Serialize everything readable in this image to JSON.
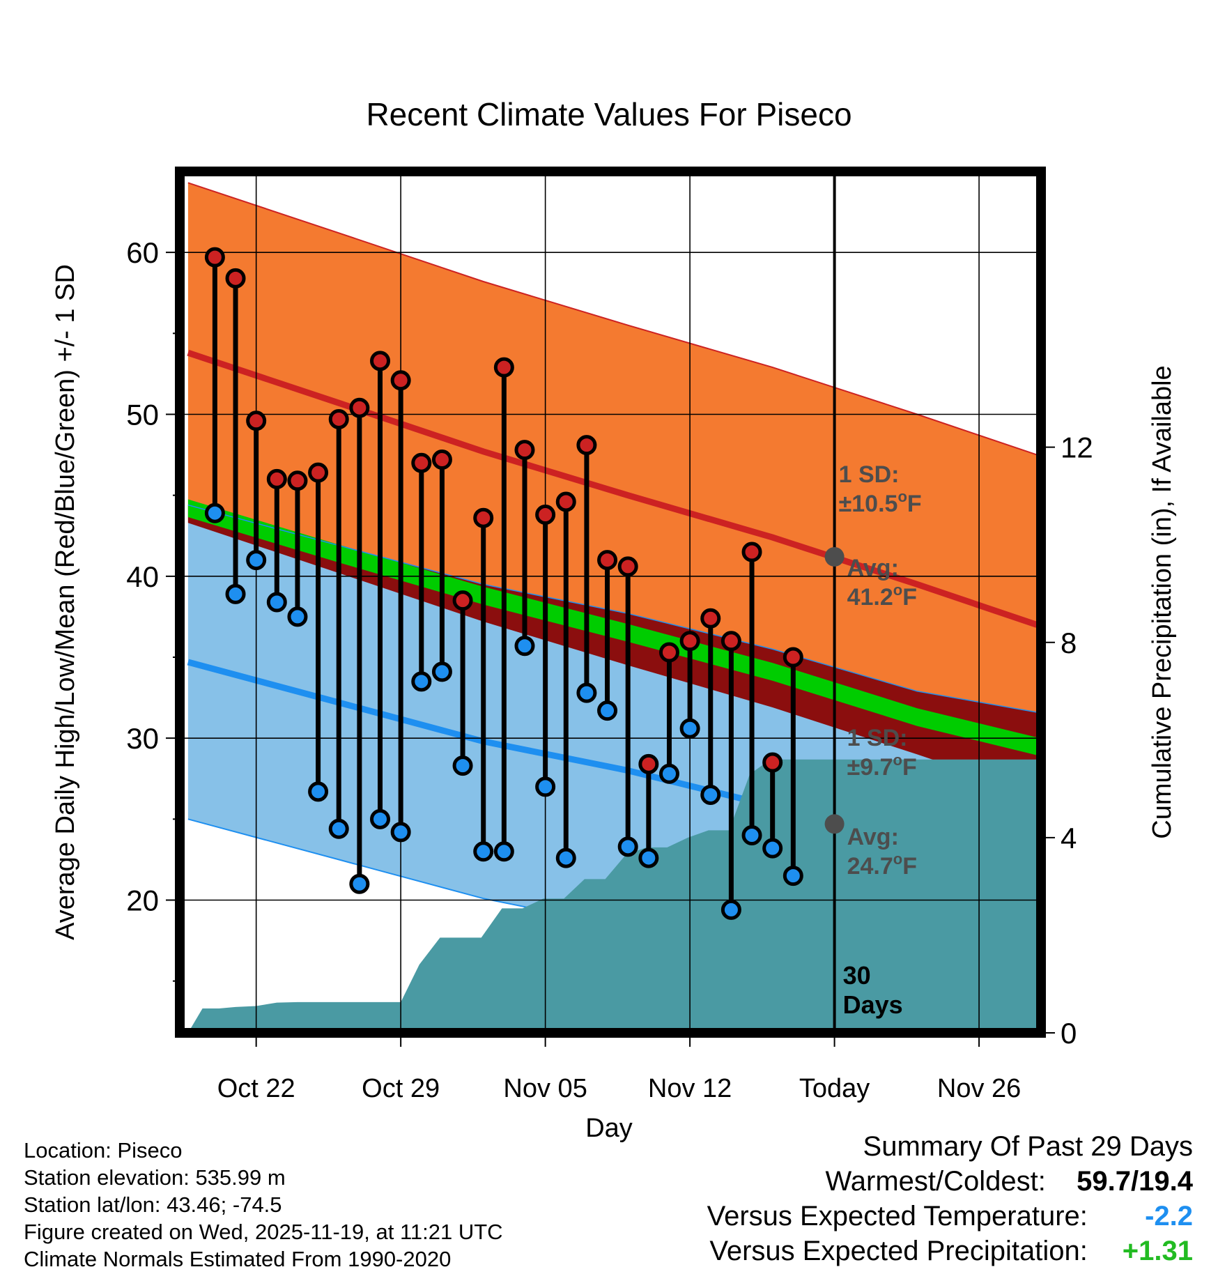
{
  "chart_data": {
    "type": "line",
    "title": "Recent Climate Values For Piseco",
    "xlabel": "Day",
    "ylabel_left": "Average Daily High/Low/Mean (Red/Blue/Green) +/- 1 SD",
    "ylabel_right": "Cumulative Precipitation (in), If Available",
    "ylim_left": [
      11.8,
      65
    ],
    "ylim_right": [
      0,
      17.65
    ],
    "xlim_days": [
      -0.7,
      41.0
    ],
    "x_ticks": [
      {
        "day": 3,
        "label": "Oct 22"
      },
      {
        "day": 10,
        "label": "Oct 29"
      },
      {
        "day": 17,
        "label": "Nov 05"
      },
      {
        "day": 24,
        "label": "Nov 12"
      },
      {
        "day": 31,
        "label": "Today"
      },
      {
        "day": 38,
        "label": "Nov 26"
      }
    ],
    "y_ticks_left": [
      20,
      30,
      40,
      50,
      60
    ],
    "y_minor_left": [
      15,
      25,
      35,
      45,
      55
    ],
    "y_ticks_right": [
      0,
      4,
      8,
      12
    ],
    "today_day": 31,
    "today_label": "30\nDays",
    "normals": {
      "days": [
        -0.3,
        7,
        14,
        21,
        28,
        35,
        40.8
      ],
      "high_avg": [
        53.8,
        50.7,
        47.7,
        45.0,
        42.4,
        39.5,
        37.0
      ],
      "high_sd": 10.5,
      "low_avg": [
        34.7,
        32.2,
        29.8,
        28.0,
        25.8,
        23.2,
        21.9
      ],
      "low_sd": 9.7,
      "mean_avg": [
        44.2,
        41.4,
        38.8,
        36.5,
        34.1,
        31.3,
        29.5
      ],
      "mean_halfwidth": 0.55
    },
    "observations": {
      "days": [
        1,
        2,
        3,
        4,
        5,
        6,
        7,
        8,
        9,
        10,
        11,
        12,
        13,
        14,
        15,
        16,
        17,
        18,
        19,
        20,
        21,
        22,
        23,
        24,
        25,
        26,
        27,
        28,
        29
      ],
      "highs": [
        59.7,
        58.4,
        49.6,
        46.0,
        45.9,
        46.4,
        49.7,
        50.4,
        53.3,
        52.1,
        47.0,
        47.2,
        38.5,
        43.6,
        52.9,
        47.8,
        43.8,
        44.6,
        48.1,
        41.0,
        40.6,
        28.4,
        35.3,
        36.0,
        37.4,
        36.0,
        41.5,
        28.5,
        35.0
      ],
      "lows": [
        43.9,
        38.9,
        41.0,
        38.4,
        37.5,
        26.7,
        24.4,
        21.0,
        25.0,
        24.2,
        33.5,
        34.1,
        28.3,
        23.0,
        23.0,
        35.7,
        27.0,
        22.6,
        32.8,
        31.7,
        23.3,
        22.6,
        27.8,
        30.6,
        26.5,
        19.4,
        24.0,
        23.2,
        21.5
      ]
    },
    "precip_cumulative": {
      "days": [
        -0.3,
        0.4,
        1.2,
        2.0,
        3.0,
        4.0,
        5.0,
        6.0,
        7.0,
        8.0,
        9.0,
        10.0,
        10.9,
        11.9,
        12.9,
        13.9,
        14.9,
        15.9,
        16.9,
        17.9,
        18.9,
        19.9,
        20.9,
        21.9,
        22.9,
        23.9,
        24.9,
        25.9,
        26.9,
        27.9,
        28.9,
        29.9,
        30.9,
        31.9,
        32.9,
        33.9,
        34.9,
        35.9,
        36.9,
        37.9,
        38.9,
        39.9,
        40.8
      ],
      "values": [
        0.0,
        0.5,
        0.5,
        0.53,
        0.55,
        0.62,
        0.63,
        0.63,
        0.63,
        0.63,
        0.63,
        0.63,
        1.4,
        1.95,
        1.95,
        1.95,
        2.55,
        2.55,
        2.75,
        2.75,
        3.15,
        3.15,
        3.65,
        3.8,
        3.8,
        4.0,
        4.15,
        4.15,
        5.3,
        5.6,
        5.6,
        5.6,
        5.6,
        5.6,
        5.6,
        5.6,
        5.6,
        5.6,
        5.6,
        5.6,
        5.6,
        5.6,
        5.6
      ]
    },
    "annotations": {
      "high_sd_label": "1 SD:",
      "high_sd_value": "±10.5",
      "high_avg_label": "Avg:",
      "high_avg_value": "41.2",
      "low_sd_label": "1 SD:",
      "low_sd_value": "±9.7",
      "low_avg_label": "Avg:",
      "low_avg_value": "24.7",
      "degree_symbol": "o",
      "unit": "F",
      "today_high_avg": 41.2,
      "today_low_avg": 24.7
    }
  },
  "colors": {
    "high_band": "#f47a30",
    "high_line": "#cc2222",
    "low_band": "#87c1e8",
    "low_line": "#1e8ff0",
    "mean_band": "#00cc00",
    "overlap_dark": "#8b0e0e",
    "precip": "#4a9aa3",
    "high_marker": "#cc2222",
    "low_marker": "#1e8ff0",
    "avg_marker": "#4d4d4d",
    "annotation_text": "#4d4d4d",
    "cold_value": "#1e8ff0",
    "wet_value": "#22bb22"
  },
  "metadata": {
    "location": "Location: Piseco",
    "elevation": "Station elevation: 535.99 m",
    "latlon": "Station lat/lon: 43.46; -74.5",
    "created": "Figure created on Wed, 2025-11-19, at 11:21 UTC",
    "normals": "Climate Normals Estimated From 1990-2020"
  },
  "summary": {
    "title": "Summary Of Past 29 Days",
    "warm_cold_label": "Warmest/Coldest:",
    "warm_cold_value": "59.7/19.4",
    "temp_label": "Versus Expected Temperature:",
    "temp_value": "-2.2",
    "precip_label": "Versus Expected Precipitation:",
    "precip_value": "+1.31"
  }
}
